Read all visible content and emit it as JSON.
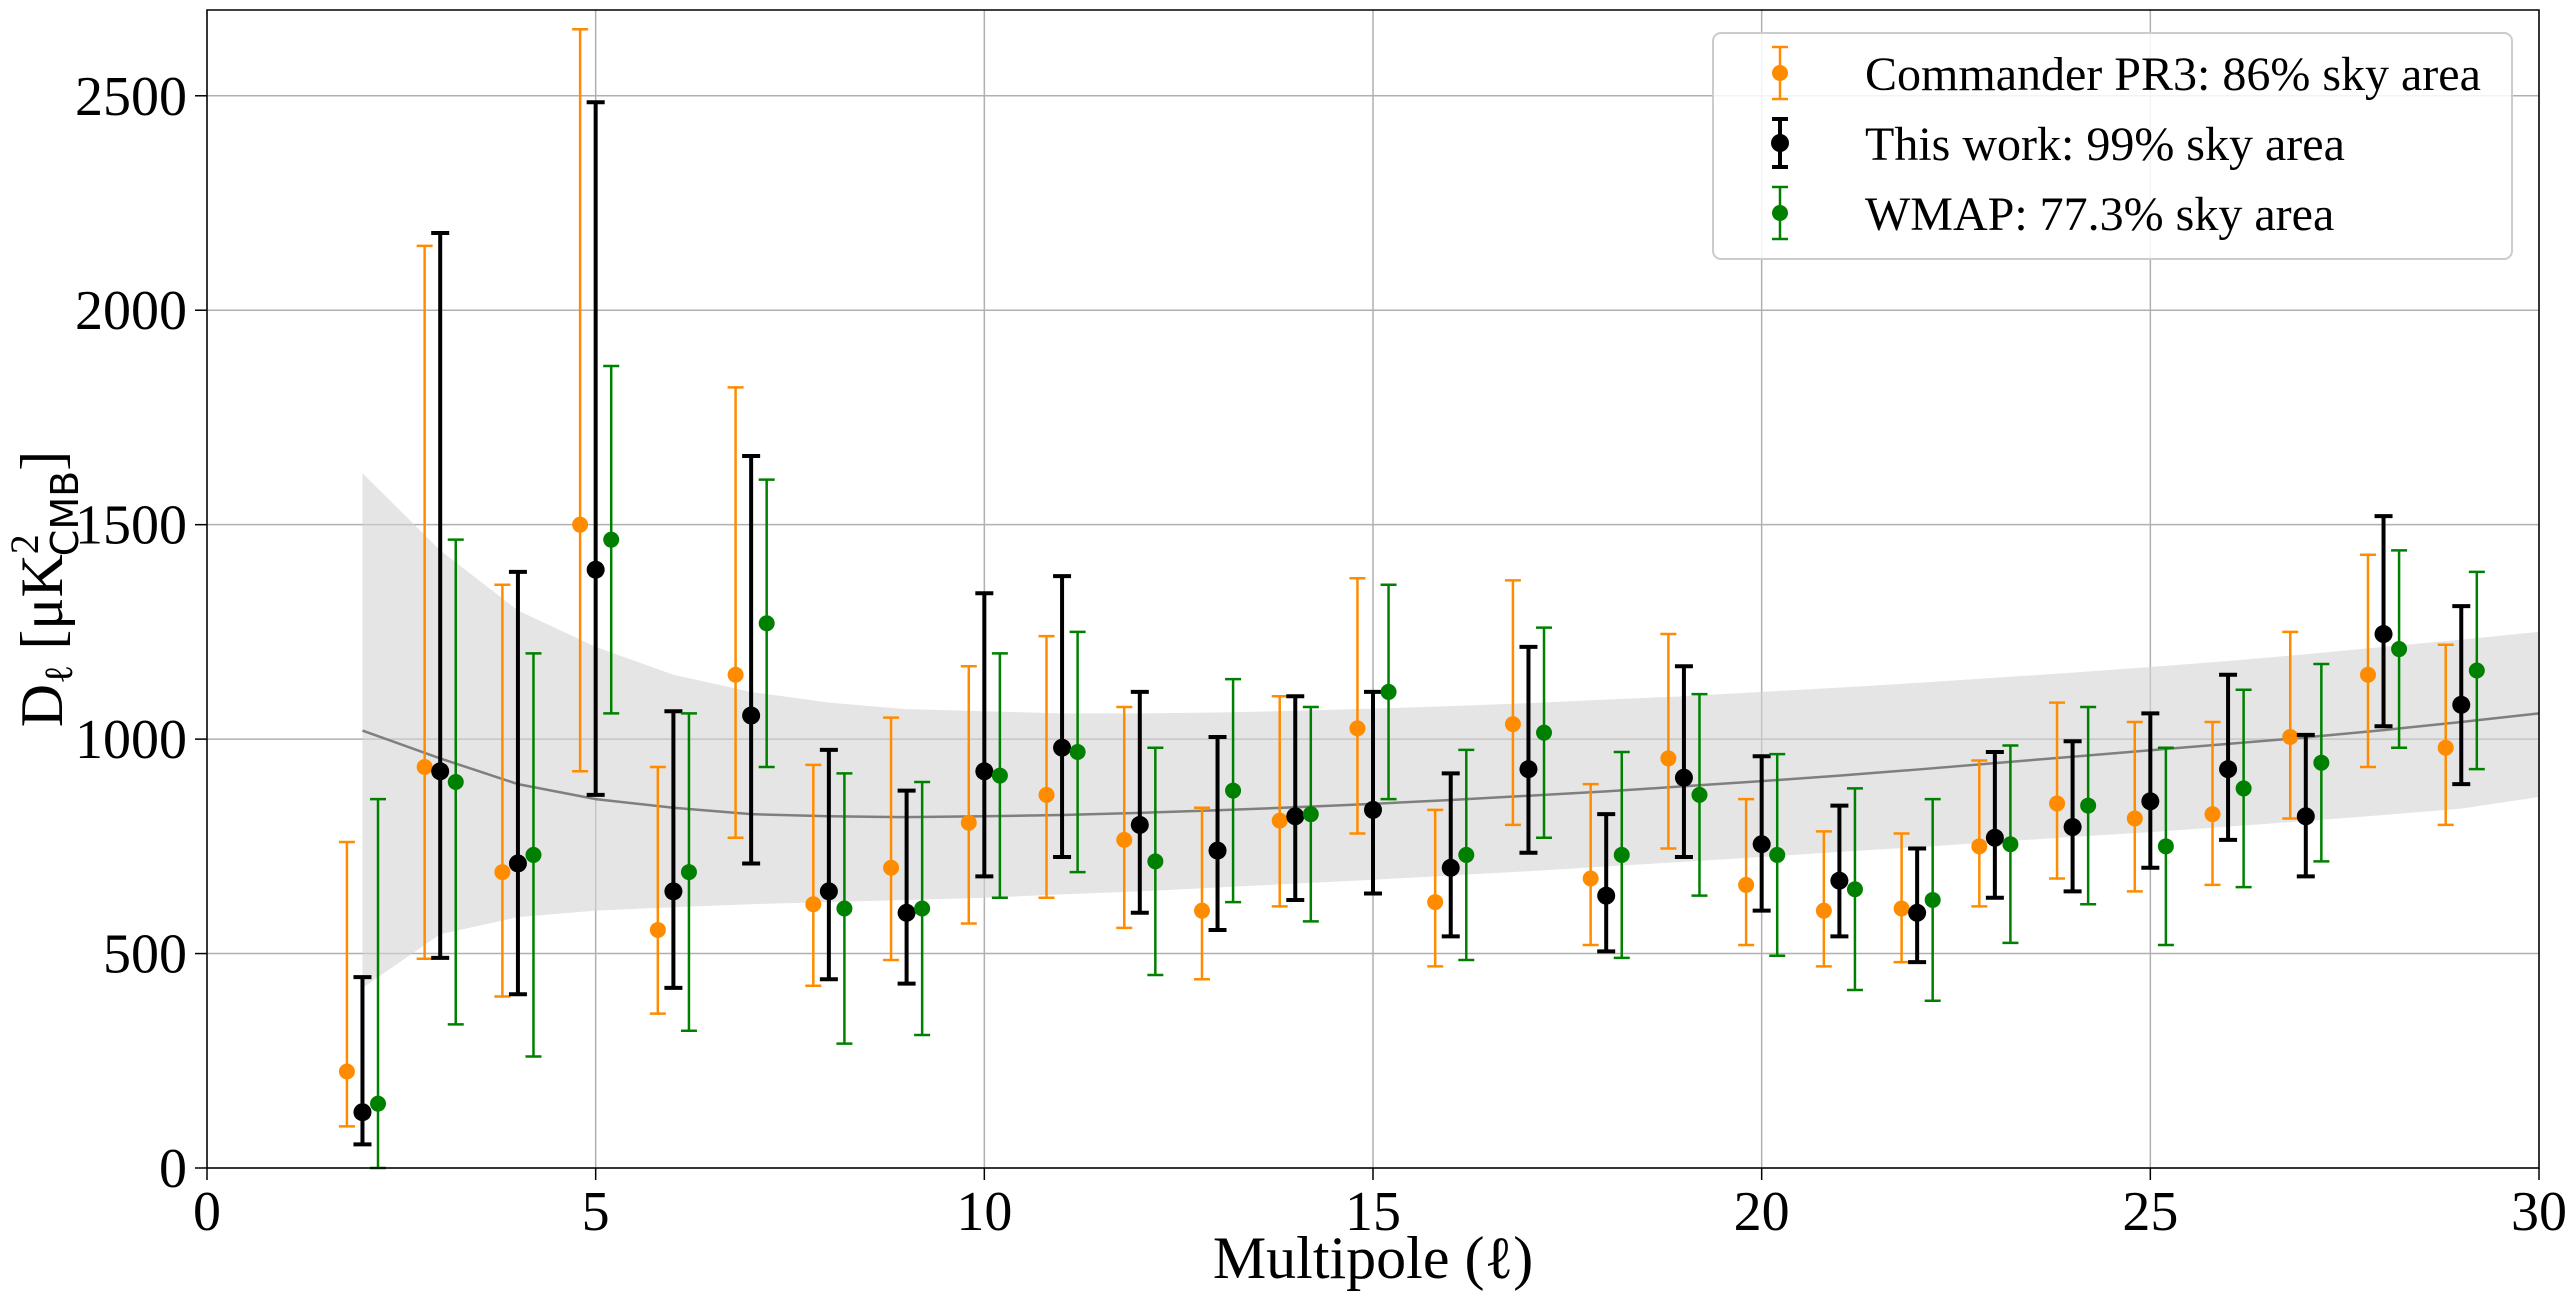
{
  "chart_data": {
    "type": "scatter",
    "title": "",
    "xlabel": "Multipole (ℓ)",
    "ylabel": "D_ℓ [μK²_CMB]",
    "ylabel_parts": {
      "base": "D",
      "sub_ell": "ℓ",
      "open": " [μK",
      "sup": "2",
      "sub": "CMB",
      "close": "]"
    },
    "xlim": [
      0,
      30
    ],
    "ylim": [
      0,
      2700
    ],
    "xticks": [
      0,
      5,
      10,
      15,
      20,
      25,
      30
    ],
    "yticks": [
      0,
      500,
      1000,
      1500,
      2000,
      2500
    ],
    "xtick_labels": [
      "0",
      "5",
      "10",
      "15",
      "20",
      "25",
      "30"
    ],
    "ytick_labels": [
      "0",
      "500",
      "1000",
      "1500",
      "2000",
      "2500"
    ],
    "grid": true,
    "legend_position": "top-right",
    "series": [
      {
        "name": "Commander PR3: 86% sky area",
        "color": "#ff8c00",
        "x_offset": -0.2,
        "ell": [
          2,
          3,
          4,
          5,
          6,
          7,
          8,
          9,
          10,
          11,
          12,
          13,
          14,
          15,
          16,
          17,
          18,
          19,
          20,
          21,
          22,
          23,
          24,
          25,
          26,
          27,
          28,
          29
        ],
        "values": [
          225,
          935,
          690,
          1500,
          555,
          1150,
          615,
          700,
          805,
          870,
          765,
          600,
          810,
          1025,
          620,
          1035,
          675,
          955,
          660,
          600,
          605,
          750,
          850,
          815,
          825,
          1005,
          1150,
          980
        ],
        "err_low": [
          128,
          447,
          290,
          575,
          195,
          380,
          190,
          215,
          235,
          240,
          205,
          160,
          200,
          245,
          150,
          235,
          155,
          210,
          140,
          130,
          125,
          140,
          175,
          170,
          165,
          190,
          215,
          180
        ],
        "err_high": [
          535,
          1215,
          670,
          1155,
          380,
          670,
          325,
          350,
          365,
          370,
          310,
          240,
          290,
          350,
          215,
          335,
          220,
          290,
          200,
          185,
          175,
          200,
          235,
          225,
          215,
          245,
          280,
          240
        ]
      },
      {
        "name": "This work: 99% sky area",
        "color": "#000000",
        "x_offset": 0,
        "ell": [
          2,
          3,
          4,
          5,
          6,
          7,
          8,
          9,
          10,
          11,
          12,
          13,
          14,
          15,
          16,
          17,
          18,
          19,
          20,
          21,
          22,
          23,
          24,
          25,
          26,
          27,
          28,
          29
        ],
        "values": [
          130,
          925,
          710,
          1395,
          645,
          1055,
          645,
          595,
          925,
          980,
          800,
          740,
          820,
          835,
          700,
          930,
          635,
          910,
          755,
          670,
          595,
          770,
          795,
          855,
          930,
          820,
          1245,
          1080
        ],
        "err_low": [
          75,
          435,
          305,
          525,
          225,
          345,
          205,
          165,
          245,
          255,
          205,
          185,
          195,
          195,
          160,
          195,
          130,
          185,
          155,
          130,
          115,
          140,
          150,
          155,
          165,
          140,
          215,
          185
        ],
        "err_high": [
          315,
          1255,
          680,
          1090,
          420,
          605,
          330,
          285,
          415,
          400,
          310,
          265,
          280,
          275,
          220,
          285,
          190,
          260,
          205,
          175,
          150,
          200,
          200,
          205,
          220,
          190,
          275,
          230
        ]
      },
      {
        "name": "WMAP: 77.3% sky area",
        "color": "#008000",
        "x_offset": 0.2,
        "ell": [
          2,
          3,
          4,
          5,
          6,
          7,
          8,
          9,
          10,
          11,
          12,
          13,
          14,
          15,
          16,
          17,
          18,
          19,
          20,
          21,
          22,
          23,
          24,
          25,
          26,
          27,
          28,
          29
        ],
        "values": [
          150,
          900,
          730,
          1465,
          690,
          1270,
          605,
          605,
          915,
          970,
          715,
          880,
          825,
          1110,
          730,
          1015,
          730,
          870,
          730,
          650,
          625,
          755,
          845,
          750,
          885,
          945,
          1210,
          1160
        ],
        "err_low": [
          150,
          565,
          470,
          405,
          370,
          335,
          315,
          295,
          285,
          280,
          265,
          260,
          250,
          250,
          245,
          245,
          240,
          235,
          235,
          235,
          235,
          230,
          230,
          230,
          230,
          230,
          230,
          230
        ],
        "err_high": [
          710,
          565,
          470,
          405,
          370,
          335,
          315,
          295,
          285,
          280,
          265,
          260,
          250,
          250,
          245,
          245,
          240,
          235,
          235,
          235,
          235,
          230,
          230,
          230,
          230,
          230,
          230,
          230
        ]
      }
    ],
    "model": {
      "ell": [
        2,
        3,
        4,
        5,
        6,
        7,
        8,
        9,
        10,
        11,
        12,
        13,
        14,
        15,
        16,
        17,
        18,
        19,
        20,
        21,
        22,
        23,
        24,
        25,
        26,
        27,
        28,
        29,
        30
      ],
      "values": [
        1020,
        955,
        895,
        860,
        840,
        825,
        820,
        818,
        820,
        823,
        828,
        834,
        841,
        849,
        858,
        868,
        878,
        890,
        902,
        915,
        929,
        944,
        959,
        974,
        989,
        1004,
        1021,
        1040,
        1060
      ],
      "band_low": [
        420,
        545,
        585,
        600,
        608,
        615,
        620,
        625,
        630,
        638,
        645,
        654,
        663,
        672,
        682,
        692,
        703,
        714,
        725,
        737,
        748,
        760,
        772,
        783,
        796,
        809,
        823,
        838,
        865
      ],
      "band_high": [
        1620,
        1440,
        1300,
        1215,
        1150,
        1110,
        1085,
        1070,
        1065,
        1060,
        1060,
        1062,
        1066,
        1071,
        1077,
        1084,
        1092,
        1100,
        1110,
        1120,
        1131,
        1143,
        1155,
        1168,
        1182,
        1198,
        1215,
        1232,
        1250
      ],
      "line_color": "#7f7f7f",
      "band_color": "#d3d3d3"
    }
  }
}
